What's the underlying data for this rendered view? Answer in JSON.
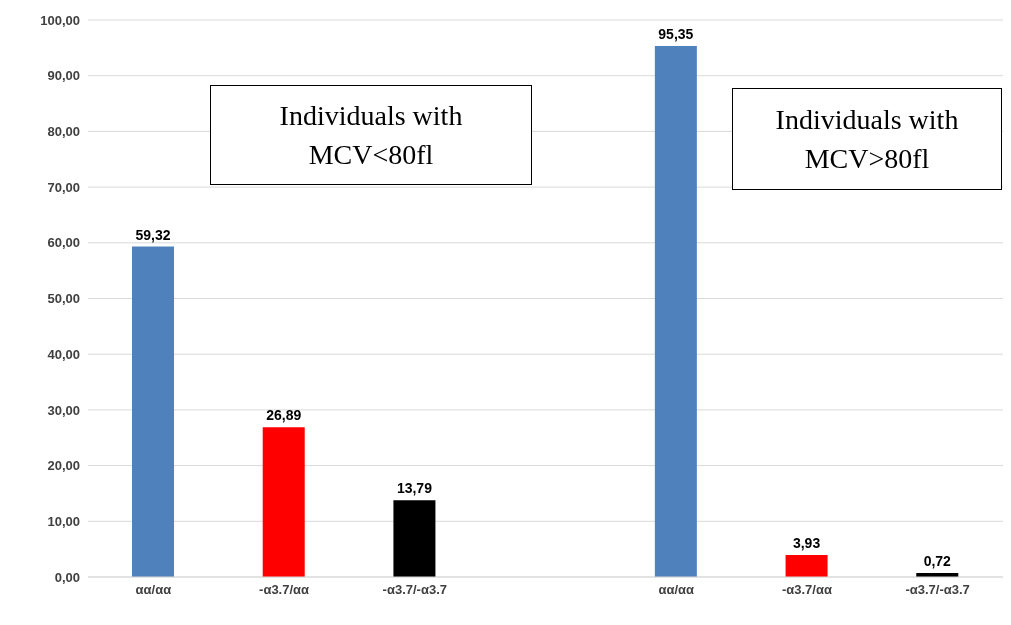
{
  "chart_data": {
    "type": "bar",
    "categories": [
      "αα/αα",
      "-α3.7/αα",
      "-α3.7/-α3.7",
      null,
      "αα/αα",
      "-α3.7/αα",
      "-α3.7/-α3.7"
    ],
    "values": [
      59.32,
      26.89,
      13.79,
      null,
      95.35,
      3.93,
      0.72
    ],
    "colors": [
      "#4f81bd",
      "#ff0000",
      "#000000",
      null,
      "#4f81bd",
      "#ff0000",
      "#000000"
    ],
    "value_labels": [
      "59,32",
      "26,89",
      "13,79",
      null,
      "95,35",
      "3,93",
      "0,72"
    ],
    "ylim": [
      0,
      100
    ],
    "yticks": [
      {
        "value": 0,
        "label": "0,00"
      },
      {
        "value": 10,
        "label": "10,00"
      },
      {
        "value": 20,
        "label": "20,00"
      },
      {
        "value": 30,
        "label": "30,00"
      },
      {
        "value": 40,
        "label": "40,00"
      },
      {
        "value": 50,
        "label": "50,00"
      },
      {
        "value": 60,
        "label": "60,00"
      },
      {
        "value": 70,
        "label": "70,00"
      },
      {
        "value": 80,
        "label": "80,00"
      },
      {
        "value": 90,
        "label": "90,00"
      },
      {
        "value": 100,
        "label": "100,00"
      }
    ],
    "grid": "y",
    "annotations": [
      "Individuals with\nMCV<80fl",
      "Individuals with\nMCV>80fl"
    ]
  }
}
